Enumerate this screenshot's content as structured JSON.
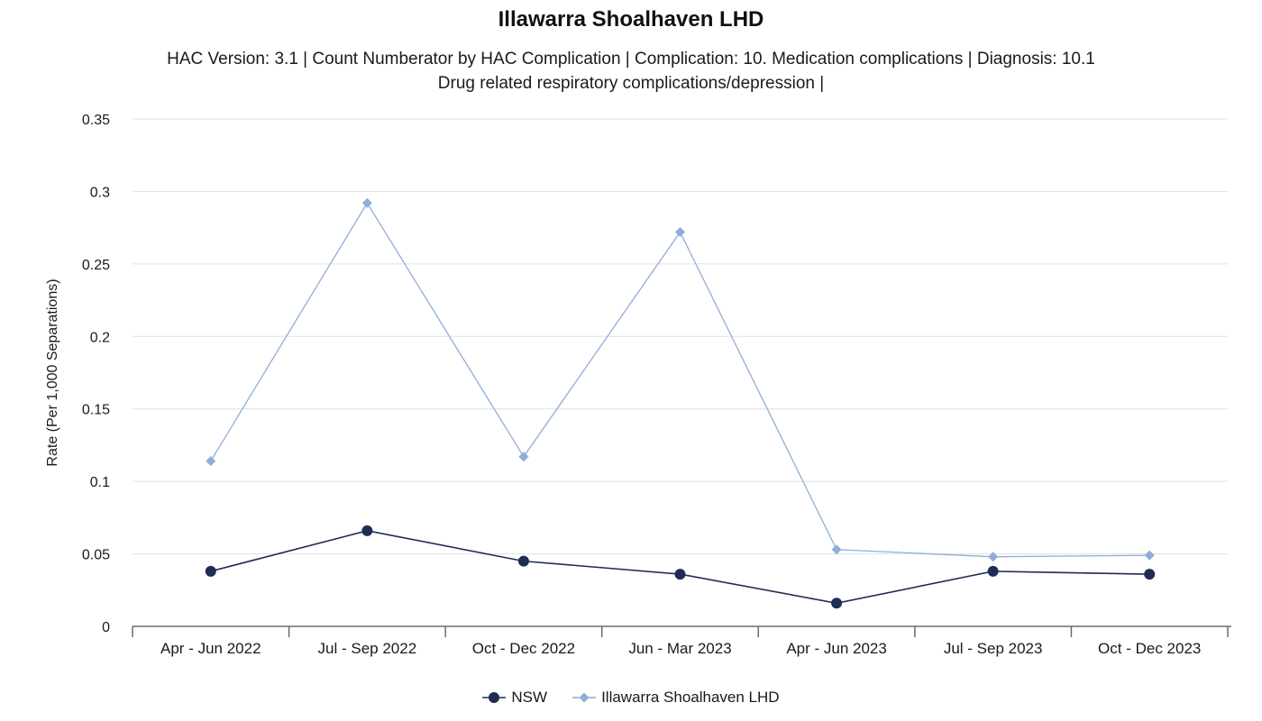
{
  "chart_data": {
    "type": "line",
    "title": "Illawarra Shoalhaven LHD",
    "subtitle_lines": [
      "HAC Version: 3.1  |   Count Numberator by HAC Complication  |  Complication: 10. Medication complications  |  Diagnosis:  10.1",
      "Drug related respiratory complications/depression  |"
    ],
    "ylabel": "Rate (Per 1,000 Separations)",
    "xlabel": "",
    "ylim": [
      0,
      0.35
    ],
    "yticks": [
      "0",
      "0.05",
      "0.1",
      "0.15",
      "0.2",
      "0.25",
      "0.3",
      "0.35"
    ],
    "ytick_values": [
      0,
      0.05,
      0.1,
      0.15,
      0.2,
      0.25,
      0.3,
      0.35
    ],
    "categories": [
      "Apr - Jun 2022",
      "Jul - Sep 2022",
      "Oct - Dec 2022",
      "Jun - Mar 2023",
      "Apr - Jun 2023",
      "Jul - Sep 2023",
      "Oct - Dec 2023"
    ],
    "grid": true,
    "legend_position": "bottom",
    "series": [
      {
        "name": "NSW",
        "marker": "circle",
        "color": "#1f2d55",
        "values": [
          0.038,
          0.066,
          0.045,
          0.036,
          0.016,
          0.038,
          0.036
        ]
      },
      {
        "name": "Illawarra Shoalhaven LHD",
        "marker": "diamond",
        "color": "#8eaed6",
        "values": [
          0.114,
          0.292,
          0.117,
          0.272,
          0.053,
          0.048,
          0.049
        ]
      }
    ]
  }
}
